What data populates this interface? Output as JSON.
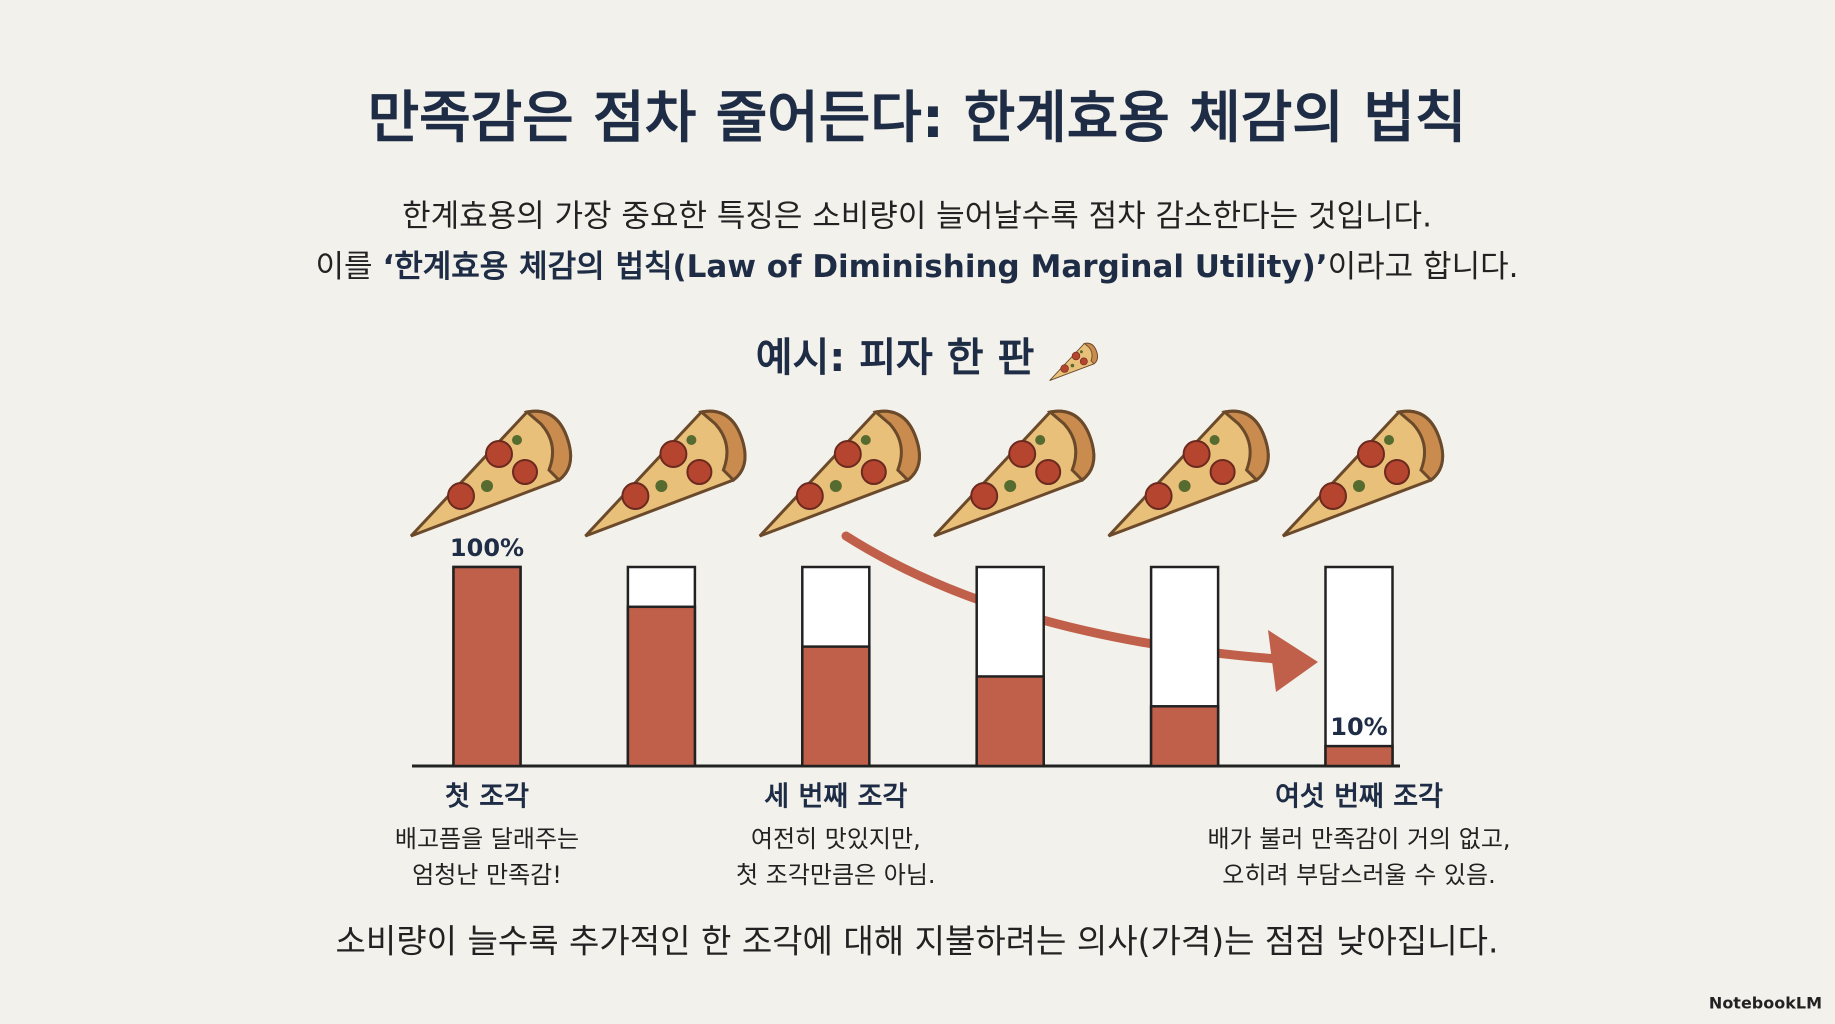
{
  "title": "만족감은 점차 줄어든다: 한계효용 체감의 법칙",
  "subtitle": {
    "line1": "한계효용의 가장 중요한 특징은 소비량이 늘어날수록 점차 감소한다는 것입니다.",
    "line2": [
      "이를 ",
      "‘한계효용 체감의 법칙(Law of Diminishing Marginal Utility)’",
      "이라고 합니다."
    ]
  },
  "example_heading": "예시: 피자 한 판",
  "chart_data": {
    "type": "bar",
    "categories": [
      "첫 조각",
      null,
      "세 번째 조각",
      null,
      null,
      "여섯 번째 조각"
    ],
    "descriptions": [
      [
        "배고픔을 달래주는",
        "엄청난 만족감!"
      ],
      null,
      [
        "여전히 맛있지만,",
        "첫 조각만큼은 아님."
      ],
      null,
      null,
      [
        "배가 불러 만족감이 거의 없고,",
        "오히려 부담스러울 수 있음."
      ]
    ],
    "values": [
      100,
      80,
      60,
      45,
      30,
      10
    ],
    "value_labels": [
      "100%",
      null,
      null,
      null,
      null,
      "10%"
    ],
    "color": "#c0604a",
    "ylim": [
      0,
      100
    ]
  },
  "footer": "소비량이 늘수록 추가적인 한 조각에 대해 지불하려는 의사(가격)는 점점 낮아집니다.",
  "brand": "NotebookLM"
}
